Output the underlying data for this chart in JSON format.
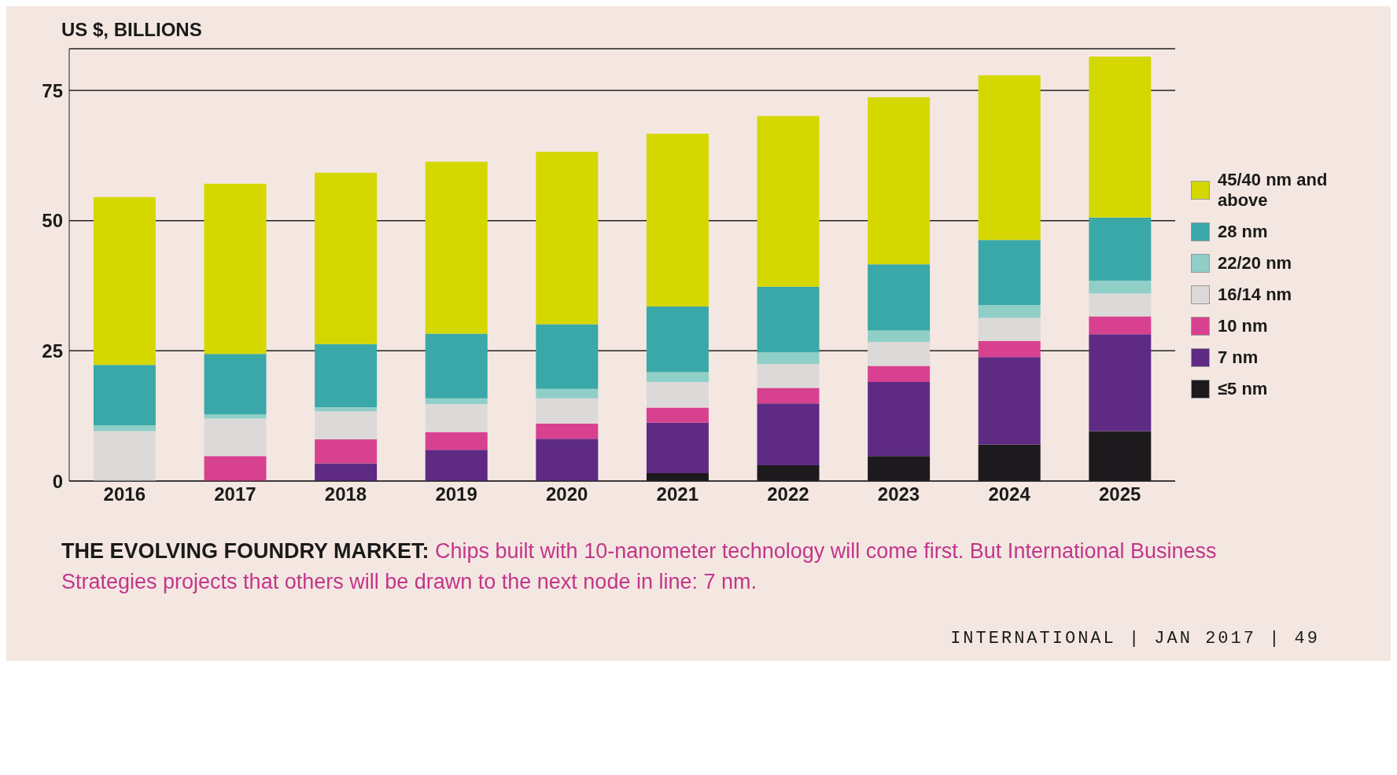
{
  "chart_data": {
    "type": "bar",
    "title": "THE EVOLVING FOUNDRY MARKET:",
    "subtitle": "Chips built with 10-nanometer technology will come first. But International Business Strategies projects that others will be drawn to the next node in line: 7 nm.",
    "ylabel": "US $, BILLIONS",
    "categories": [
      "2016",
      "2017",
      "2018",
      "2019",
      "2020",
      "2021",
      "2022",
      "2023",
      "2024",
      "2025"
    ],
    "stacked": true,
    "ylim": [
      0,
      83
    ],
    "yticks": [
      0,
      25,
      50,
      75
    ],
    "grid": "y",
    "legend": "right",
    "annotations": [
      "INTERNATIONAL | JAN 2017 | 49"
    ],
    "series": [
      {
        "name": "≤5 nm",
        "color": "#1c1a1c",
        "values": [
          0,
          0,
          0,
          0,
          0,
          1.5,
          3.0,
          4.8,
          7.0,
          9.6
        ]
      },
      {
        "name": "7 nm",
        "color": "#5e2a84",
        "values": [
          0,
          0,
          3.4,
          6.0,
          8.1,
          9.7,
          11.9,
          14.2,
          16.8,
          18.6
        ]
      },
      {
        "name": "10 nm",
        "color": "#d8418f",
        "values": [
          0,
          4.8,
          4.6,
          3.4,
          2.9,
          2.9,
          3.0,
          3.1,
          3.1,
          3.4
        ]
      },
      {
        "name": "16/14 nm",
        "color": "#dcdad8",
        "values": [
          9.6,
          7.2,
          5.4,
          5.4,
          4.9,
          4.9,
          4.6,
          4.6,
          4.4,
          4.4
        ]
      },
      {
        "name": "22/20 nm",
        "color": "#8fcfc8",
        "values": [
          1.1,
          0.8,
          0.8,
          1.1,
          1.8,
          1.9,
          2.2,
          2.2,
          2.5,
          2.5
        ]
      },
      {
        "name": "28 nm",
        "color": "#3aa8a8",
        "values": [
          11.6,
          11.6,
          12.1,
          12.4,
          12.4,
          12.6,
          12.6,
          12.7,
          12.5,
          12.1
        ]
      },
      {
        "name": "45/40 nm and above",
        "color": "#d4d800",
        "values": [
          32.2,
          32.7,
          32.9,
          33.0,
          33.1,
          33.2,
          32.8,
          32.1,
          31.6,
          30.9
        ]
      }
    ]
  }
}
